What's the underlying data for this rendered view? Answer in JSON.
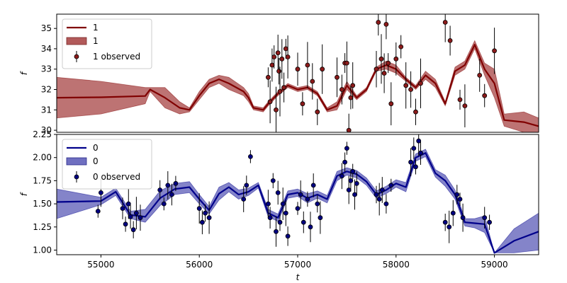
{
  "chart_data": [
    {
      "type": "line",
      "title": "",
      "xlabel": "",
      "ylabel": "f",
      "xlim": [
        54550,
        59450
      ],
      "ylim": [
        29.9,
        35.7
      ],
      "yticks": [
        "30",
        "31",
        "32",
        "33",
        "34",
        "35"
      ],
      "grid": false,
      "legend_position": "top-left",
      "colors": {
        "line": "#800000",
        "band": "#b25a5a",
        "points": "#8b1a1a"
      },
      "legend": [
        "1",
        "1",
        "1 observed"
      ],
      "series": [
        {
          "name": "1",
          "kind": "mean",
          "x": [
            54550,
            55000,
            55450,
            55500,
            55650,
            55800,
            55900,
            56000,
            56100,
            56200,
            56300,
            56450,
            56500,
            56550,
            56650,
            56700,
            56800,
            56900,
            57000,
            57100,
            57200,
            57300,
            57400,
            57500,
            57600,
            57700,
            57800,
            57900,
            58000,
            58100,
            58200,
            58300,
            58400,
            58500,
            58600,
            58700,
            58800,
            58900,
            59000,
            59100,
            59300,
            59450
          ],
          "y": [
            31.6,
            31.62,
            31.68,
            32.0,
            31.6,
            31.1,
            31.0,
            31.7,
            32.3,
            32.5,
            32.3,
            31.9,
            31.6,
            31.1,
            31.0,
            31.3,
            31.8,
            32.2,
            32.0,
            32.1,
            31.8,
            31.0,
            31.2,
            32.2,
            31.6,
            32.0,
            33.0,
            33.2,
            33.0,
            32.5,
            32.1,
            32.7,
            32.3,
            31.3,
            32.9,
            33.2,
            34.2,
            33.0,
            32.3,
            30.5,
            30.4,
            30.2
          ]
        },
        {
          "name": "1",
          "kind": "band",
          "x": [
            54550,
            55000,
            55450,
            55500,
            55650,
            55800,
            55900,
            56000,
            56100,
            56200,
            56300,
            56450,
            56500,
            56550,
            56650,
            56700,
            56800,
            56900,
            57000,
            57100,
            57200,
            57300,
            57400,
            57500,
            57600,
            57700,
            57800,
            57900,
            58000,
            58100,
            58200,
            58300,
            58400,
            58500,
            58600,
            58700,
            58800,
            58900,
            59000,
            59100,
            59300,
            59450
          ],
          "lower": [
            30.6,
            30.8,
            31.3,
            31.9,
            31.1,
            30.8,
            30.9,
            31.5,
            32.1,
            32.3,
            32.0,
            31.7,
            31.4,
            31.0,
            30.9,
            31.2,
            31.7,
            32.1,
            31.9,
            32.0,
            31.7,
            30.9,
            31.0,
            32.0,
            31.5,
            31.9,
            32.9,
            33.0,
            32.8,
            32.4,
            32.0,
            32.5,
            32.1,
            31.2,
            32.7,
            33.0,
            34.0,
            32.7,
            31.6,
            30.2,
            29.9,
            29.8
          ],
          "upper": [
            32.6,
            32.4,
            32.1,
            32.1,
            32.1,
            31.4,
            31.1,
            31.9,
            32.5,
            32.7,
            32.6,
            32.1,
            31.8,
            31.2,
            31.1,
            31.4,
            31.9,
            32.3,
            32.1,
            32.2,
            31.9,
            31.1,
            31.4,
            32.4,
            31.7,
            32.1,
            33.1,
            33.4,
            33.2,
            32.6,
            32.2,
            32.9,
            32.5,
            31.4,
            33.1,
            33.4,
            34.4,
            33.3,
            33.0,
            30.8,
            30.9,
            30.6
          ]
        },
        {
          "name": "1 observed",
          "kind": "points",
          "x": [
            56700,
            56720,
            56740,
            56760,
            56780,
            56800,
            56810,
            56820,
            56840,
            56860,
            56880,
            56900,
            57000,
            57050,
            57100,
            57150,
            57200,
            57250,
            57400,
            57450,
            57480,
            57500,
            57520,
            57540,
            57560,
            57800,
            57820,
            57850,
            57880,
            57900,
            57920,
            57950,
            58000,
            58050,
            58100,
            58150,
            58200,
            58250,
            58500,
            58550,
            58650,
            58700,
            58850,
            58900,
            59000
          ],
          "y": [
            32.6,
            31.4,
            33.2,
            33.6,
            31.0,
            33.8,
            32.9,
            31.9,
            33.5,
            32.1,
            34.0,
            33.6,
            33.0,
            31.3,
            33.2,
            32.4,
            30.9,
            33.0,
            32.6,
            32.0,
            33.3,
            33.3,
            30.0,
            31.6,
            32.2,
            33.0,
            35.3,
            33.5,
            32.8,
            35.2,
            33.3,
            31.3,
            33.5,
            34.1,
            32.2,
            32.0,
            30.9,
            32.3,
            35.3,
            34.4,
            31.5,
            31.2,
            32.7,
            31.7,
            33.9
          ]
        }
      ]
    },
    {
      "type": "line",
      "title": "",
      "xlabel": "t",
      "ylabel": "f",
      "xlim": [
        54550,
        59450
      ],
      "ylim": [
        0.95,
        2.25
      ],
      "xticks": [
        "55000",
        "56000",
        "57000",
        "58000",
        "59000"
      ],
      "yticks": [
        "1.00",
        "1.25",
        "1.50",
        "1.75",
        "2.00",
        "2.25"
      ],
      "grid": false,
      "legend_position": "top-left",
      "colors": {
        "line": "#00008b",
        "band": "#6f6fc0",
        "points": "#000080"
      },
      "legend": [
        "0",
        "0",
        "0 observed"
      ],
      "series": [
        {
          "name": "0",
          "kind": "mean",
          "x": [
            54550,
            55000,
            55150,
            55300,
            55450,
            55600,
            55750,
            55900,
            56000,
            56100,
            56200,
            56300,
            56400,
            56500,
            56600,
            56700,
            56800,
            56900,
            57000,
            57100,
            57200,
            57300,
            57400,
            57500,
            57600,
            57700,
            57800,
            57900,
            58000,
            58100,
            58200,
            58300,
            58400,
            58500,
            58600,
            58700,
            58800,
            58900,
            59000,
            59200,
            59450
          ],
          "y": [
            1.52,
            1.53,
            1.63,
            1.38,
            1.36,
            1.56,
            1.66,
            1.68,
            1.55,
            1.43,
            1.61,
            1.68,
            1.6,
            1.63,
            1.7,
            1.4,
            1.35,
            1.6,
            1.62,
            1.56,
            1.6,
            1.55,
            1.8,
            1.85,
            1.82,
            1.74,
            1.6,
            1.65,
            1.72,
            1.68,
            2.0,
            2.05,
            1.83,
            1.75,
            1.6,
            1.3,
            1.29,
            1.28,
            0.97,
            1.1,
            1.2
          ]
        },
        {
          "name": "0",
          "kind": "band",
          "x": [
            54550,
            55000,
            55150,
            55300,
            55450,
            55600,
            55750,
            55900,
            56000,
            56100,
            56200,
            56300,
            56400,
            56500,
            56600,
            56700,
            56800,
            56900,
            57000,
            57100,
            57200,
            57300,
            57400,
            57500,
            57600,
            57700,
            57800,
            57900,
            58000,
            58100,
            58200,
            58300,
            58400,
            58500,
            58600,
            58700,
            58800,
            58900,
            59000,
            59200,
            59450
          ],
          "lower": [
            1.34,
            1.49,
            1.59,
            1.34,
            1.3,
            1.48,
            1.6,
            1.62,
            1.5,
            1.39,
            1.54,
            1.63,
            1.55,
            1.59,
            1.67,
            1.36,
            1.31,
            1.56,
            1.58,
            1.51,
            1.56,
            1.51,
            1.75,
            1.81,
            1.78,
            1.7,
            1.56,
            1.61,
            1.68,
            1.63,
            1.96,
            2.01,
            1.79,
            1.69,
            1.55,
            1.26,
            1.24,
            1.19,
            0.97,
            0.97,
            1.0
          ],
          "upper": [
            1.66,
            1.57,
            1.67,
            1.42,
            1.44,
            1.64,
            1.72,
            1.74,
            1.6,
            1.47,
            1.68,
            1.73,
            1.65,
            1.67,
            1.73,
            1.44,
            1.39,
            1.64,
            1.66,
            1.61,
            1.64,
            1.59,
            1.85,
            1.89,
            1.86,
            1.78,
            1.64,
            1.69,
            1.76,
            1.73,
            2.04,
            2.09,
            1.87,
            1.81,
            1.65,
            1.34,
            1.34,
            1.37,
            0.97,
            1.23,
            1.4
          ]
        },
        {
          "name": "0 observed",
          "kind": "points",
          "x": [
            54970,
            55000,
            55220,
            55250,
            55280,
            55300,
            55330,
            55360,
            55400,
            55600,
            55640,
            55680,
            55720,
            55760,
            56000,
            56030,
            56060,
            56100,
            56450,
            56480,
            56520,
            56700,
            56720,
            56750,
            56780,
            56800,
            56820,
            56850,
            56880,
            56900,
            57000,
            57030,
            57060,
            57100,
            57130,
            57160,
            57200,
            57230,
            57450,
            57480,
            57500,
            57520,
            57540,
            57560,
            57580,
            57600,
            57800,
            57830,
            57860,
            57900,
            57950,
            58150,
            58180,
            58200,
            58230,
            58250,
            58500,
            58540,
            58580,
            58620,
            58650,
            58680,
            58900,
            58950
          ],
          "y": [
            1.42,
            1.62,
            1.45,
            1.28,
            1.5,
            1.36,
            1.22,
            1.4,
            1.35,
            1.65,
            1.5,
            1.7,
            1.6,
            1.72,
            1.45,
            1.3,
            1.4,
            1.35,
            1.55,
            1.7,
            2.01,
            1.5,
            1.35,
            1.75,
            1.2,
            1.62,
            1.3,
            1.5,
            1.4,
            1.15,
            1.45,
            1.6,
            1.3,
            1.55,
            1.25,
            1.7,
            1.5,
            1.35,
            1.8,
            1.95,
            2.1,
            1.65,
            1.75,
            1.85,
            1.6,
            1.72,
            1.6,
            1.55,
            1.65,
            1.5,
            1.7,
            1.95,
            2.1,
            1.9,
            2.18,
            2.05,
            1.3,
            1.25,
            1.4,
            1.6,
            1.55,
            1.35,
            1.35,
            1.3
          ]
        }
      ]
    }
  ]
}
